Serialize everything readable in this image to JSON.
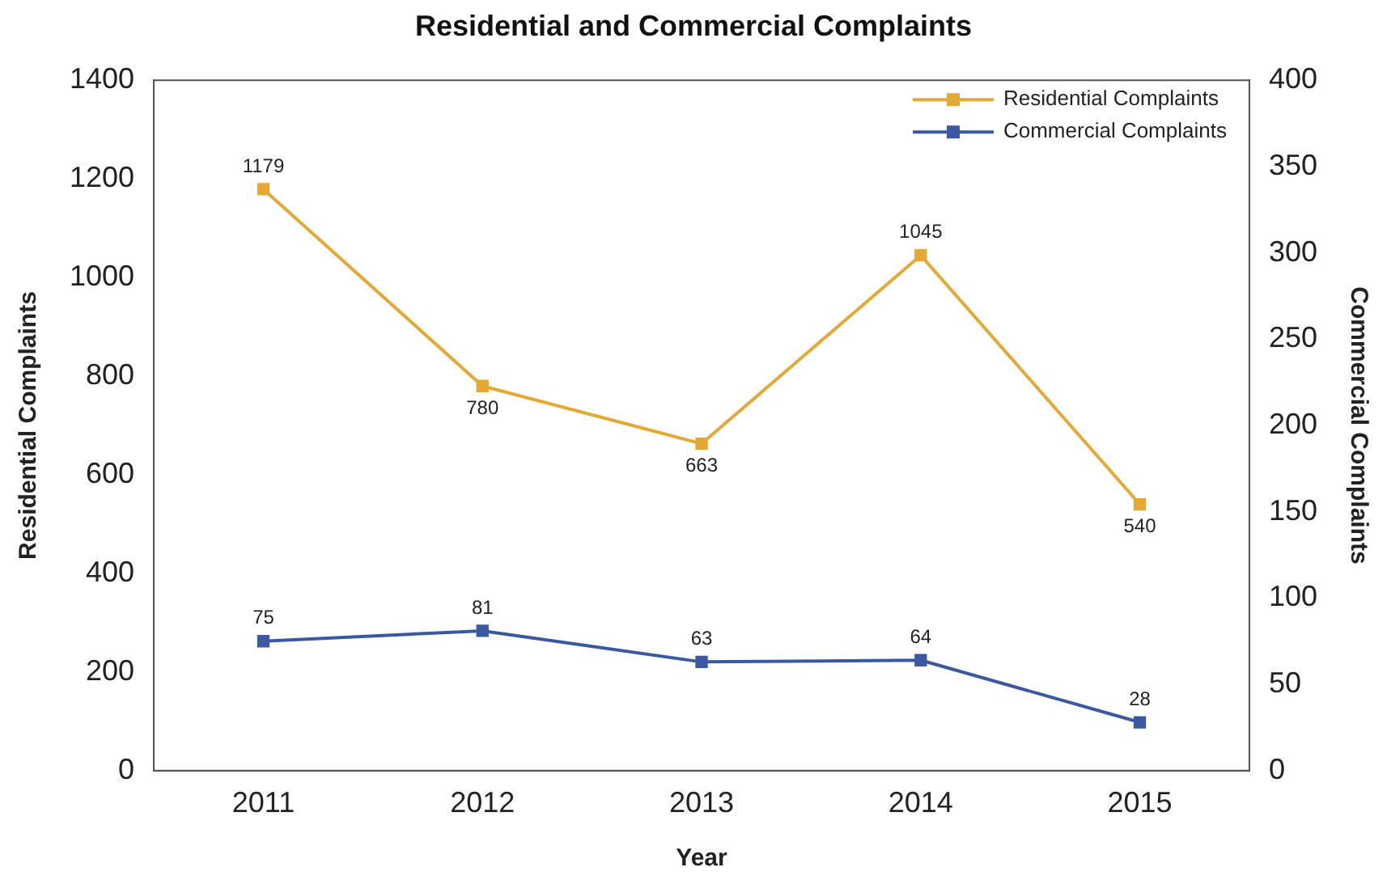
{
  "chart_data": {
    "type": "line",
    "title": "Residential and Commercial Complaints",
    "xlabel": "Year",
    "ylabel": "Residential Complaints",
    "y2label": "Commercial Complaints",
    "categories": [
      "2011",
      "2012",
      "2013",
      "2014",
      "2015"
    ],
    "series": [
      {
        "name": "Residential Complaints",
        "color": "#e3a934",
        "values": [
          1179,
          780,
          663,
          1045,
          540
        ]
      },
      {
        "name": "Commercial Complaints",
        "color": "#3b59a3",
        "values": [
          75,
          81,
          63,
          64,
          28
        ],
        "axis": "y2"
      }
    ],
    "ylim": [
      0,
      1400
    ],
    "yticks": [
      0,
      200,
      400,
      600,
      800,
      1000,
      1200,
      1400
    ],
    "y2lim": [
      0,
      400
    ],
    "y2ticks": [
      0,
      50,
      100,
      150,
      200,
      250,
      300,
      350,
      400
    ],
    "marker": "square",
    "line_style": "solid",
    "grid": false,
    "legend": "top right",
    "data_labels": true
  }
}
